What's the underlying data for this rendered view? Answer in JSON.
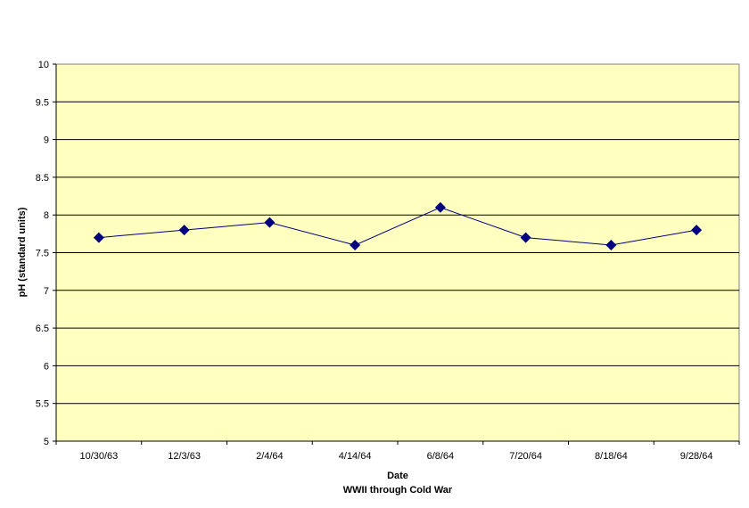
{
  "chart_data": {
    "type": "line",
    "title": "",
    "xlabel": "Date",
    "xlabel_sub": "WWII through Cold War",
    "ylabel": "pH (standard units)",
    "ylim": [
      5,
      10
    ],
    "yticks": [
      "5",
      "5.5",
      "6",
      "6.5",
      "7",
      "7.5",
      "8",
      "8.5",
      "9",
      "9.5",
      "10"
    ],
    "categories": [
      "10/30/63",
      "12/3/63",
      "2/4/64",
      "4/14/64",
      "6/8/64",
      "7/20/64",
      "8/18/64",
      "9/28/64"
    ],
    "series": [
      {
        "values": [
          7.7,
          7.8,
          7.9,
          7.6,
          8.1,
          7.7,
          7.6,
          7.8
        ]
      }
    ],
    "grid": true,
    "legend": "none",
    "colors": {
      "plot_background": "#FFFFC0",
      "series_line": "#000080",
      "marker": "#000080",
      "gridline": "#000000"
    }
  }
}
